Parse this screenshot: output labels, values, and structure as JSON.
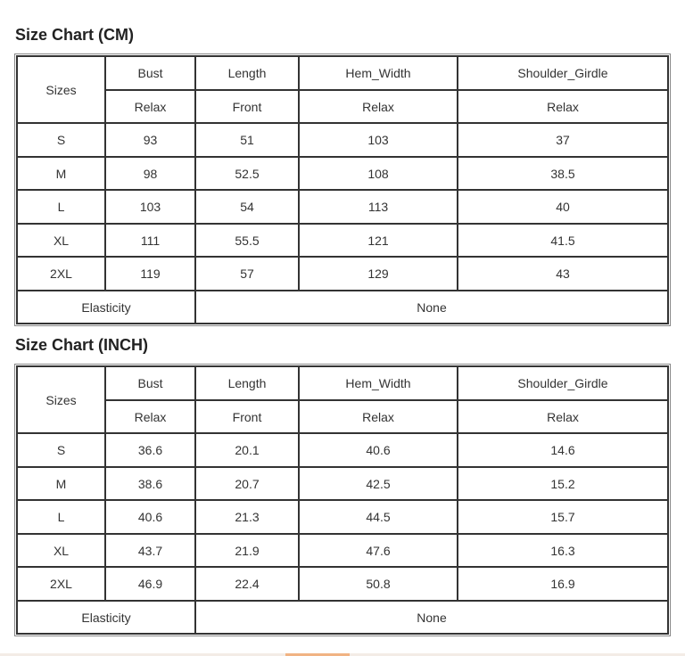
{
  "tables": [
    {
      "title": "Size Chart (CM)",
      "header1": [
        "Sizes",
        "Bust",
        "Length",
        "Hem_Width",
        "Shoulder_Girdle"
      ],
      "header2": [
        "Relax",
        "Front",
        "Relax",
        "Relax"
      ],
      "rows": [
        [
          "S",
          "93",
          "51",
          "103",
          "37"
        ],
        [
          "M",
          "98",
          "52.5",
          "108",
          "38.5"
        ],
        [
          "L",
          "103",
          "54",
          "113",
          "40"
        ],
        [
          "XL",
          "111",
          "55.5",
          "121",
          "41.5"
        ],
        [
          "2XL",
          "119",
          "57",
          "129",
          "43"
        ]
      ],
      "footer": {
        "label": "Elasticity",
        "value": "None"
      }
    },
    {
      "title": "Size Chart (INCH)",
      "header1": [
        "Sizes",
        "Bust",
        "Length",
        "Hem_Width",
        "Shoulder_Girdle"
      ],
      "header2": [
        "Relax",
        "Front",
        "Relax",
        "Relax"
      ],
      "rows": [
        [
          "S",
          "36.6",
          "20.1",
          "40.6",
          "14.6"
        ],
        [
          "M",
          "38.6",
          "20.7",
          "42.5",
          "15.2"
        ],
        [
          "L",
          "40.6",
          "21.3",
          "44.5",
          "15.7"
        ],
        [
          "XL",
          "43.7",
          "21.9",
          "47.6",
          "16.3"
        ],
        [
          "2XL",
          "46.9",
          "22.4",
          "50.8",
          "16.9"
        ]
      ],
      "footer": {
        "label": "Elasticity",
        "value": "None"
      }
    }
  ]
}
